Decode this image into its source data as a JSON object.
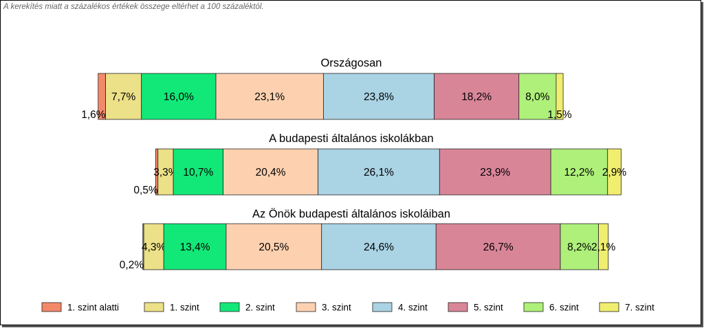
{
  "note": "A kerekítés miatt a  százalékos értékek összege eltérhet a 100 százaléktól.",
  "colors": {
    "segments": [
      "#f4896a",
      "#ece088",
      "#12e878",
      "#fdd1b0",
      "#aad3e4",
      "#d98598",
      "#aef07a",
      "#f0ee6e"
    ]
  },
  "chart_data": {
    "type": "bar",
    "orientation": "horizontal-stacked",
    "series_names": [
      "1. szint alatti",
      "1. szint",
      "2. szint",
      "3. szint",
      "4. szint",
      "5. szint",
      "6. szint",
      "7. szint"
    ],
    "bars": [
      {
        "title": "Országosan",
        "values": [
          1.6,
          7.7,
          16.0,
          23.1,
          23.8,
          18.2,
          8.0,
          1.5
        ],
        "labels": [
          "1,6%",
          "7,7%",
          "16,0%",
          "23,1%",
          "23,8%",
          "18,2%",
          "8,0%",
          "1,5%"
        ]
      },
      {
        "title": "A budapesti általános iskolákban",
        "values": [
          0.5,
          3.3,
          10.7,
          20.4,
          26.1,
          23.9,
          12.2,
          2.9
        ],
        "labels": [
          "0,5%",
          "3,3%",
          "10,7%",
          "20,4%",
          "26,1%",
          "23,9%",
          "12,2%",
          "2,9%"
        ]
      },
      {
        "title": "Az Önök budapesti általános iskoláiban",
        "values": [
          0.2,
          4.3,
          13.4,
          20.5,
          24.6,
          26.7,
          8.2,
          2.1
        ],
        "labels": [
          "0,2%",
          "4,3%",
          "13,4%",
          "20,5%",
          "24,6%",
          "26,7%",
          "8,2%",
          "2,1%"
        ]
      }
    ],
    "center_category": "4. szint",
    "legend_position": "bottom"
  }
}
